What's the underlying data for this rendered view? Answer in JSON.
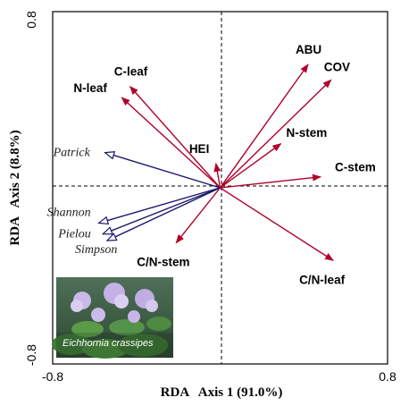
{
  "chart_data": {
    "type": "biplot",
    "title": "",
    "xlabel": "RDA   Axis 1 (91.0%)",
    "ylabel": "RDA   Axis 2 (8.8%)",
    "xlim": [
      -0.8,
      0.8
    ],
    "ylim": [
      -0.8,
      0.8
    ],
    "x_ticks": [
      "-0.8",
      "0.8"
    ],
    "y_ticks": [
      "0.8",
      "-0.8"
    ],
    "grid": false,
    "reference_lines": "dashed lines at x = 0 and y = 0",
    "series": [
      {
        "group": "environmental",
        "color": "#b0002a",
        "arrow_style": "filled",
        "vectors": [
          {
            "label": "ABU",
            "x": 0.42,
            "y": 0.56
          },
          {
            "label": "COV",
            "x": 0.53,
            "y": 0.49
          },
          {
            "label": "C-leaf",
            "x": -0.43,
            "y": 0.46
          },
          {
            "label": "N-leaf",
            "x": -0.47,
            "y": 0.41
          },
          {
            "label": "HEI",
            "x": -0.02,
            "y": 0.11
          },
          {
            "label": "N-stem",
            "x": 0.29,
            "y": 0.2
          },
          {
            "label": "C-stem",
            "x": 0.48,
            "y": 0.05
          },
          {
            "label": "C/N-stem",
            "x": -0.21,
            "y": -0.25
          },
          {
            "label": "C/N-leaf",
            "x": 0.54,
            "y": -0.33
          }
        ]
      },
      {
        "group": "diversity",
        "color": "#1a1a6e",
        "arrow_style": "open",
        "vectors": [
          {
            "label": "Patrick",
            "x": -0.55,
            "y": 0.16
          },
          {
            "label": "Shannon",
            "x": -0.58,
            "y": -0.16
          },
          {
            "label": "Pielou",
            "x": -0.56,
            "y": -0.21
          },
          {
            "label": "Simpson",
            "x": -0.54,
            "y": -0.24
          }
        ]
      }
    ],
    "inset_photo": {
      "caption": "Eichhornia crassipes",
      "placement": "bottom-left"
    }
  }
}
